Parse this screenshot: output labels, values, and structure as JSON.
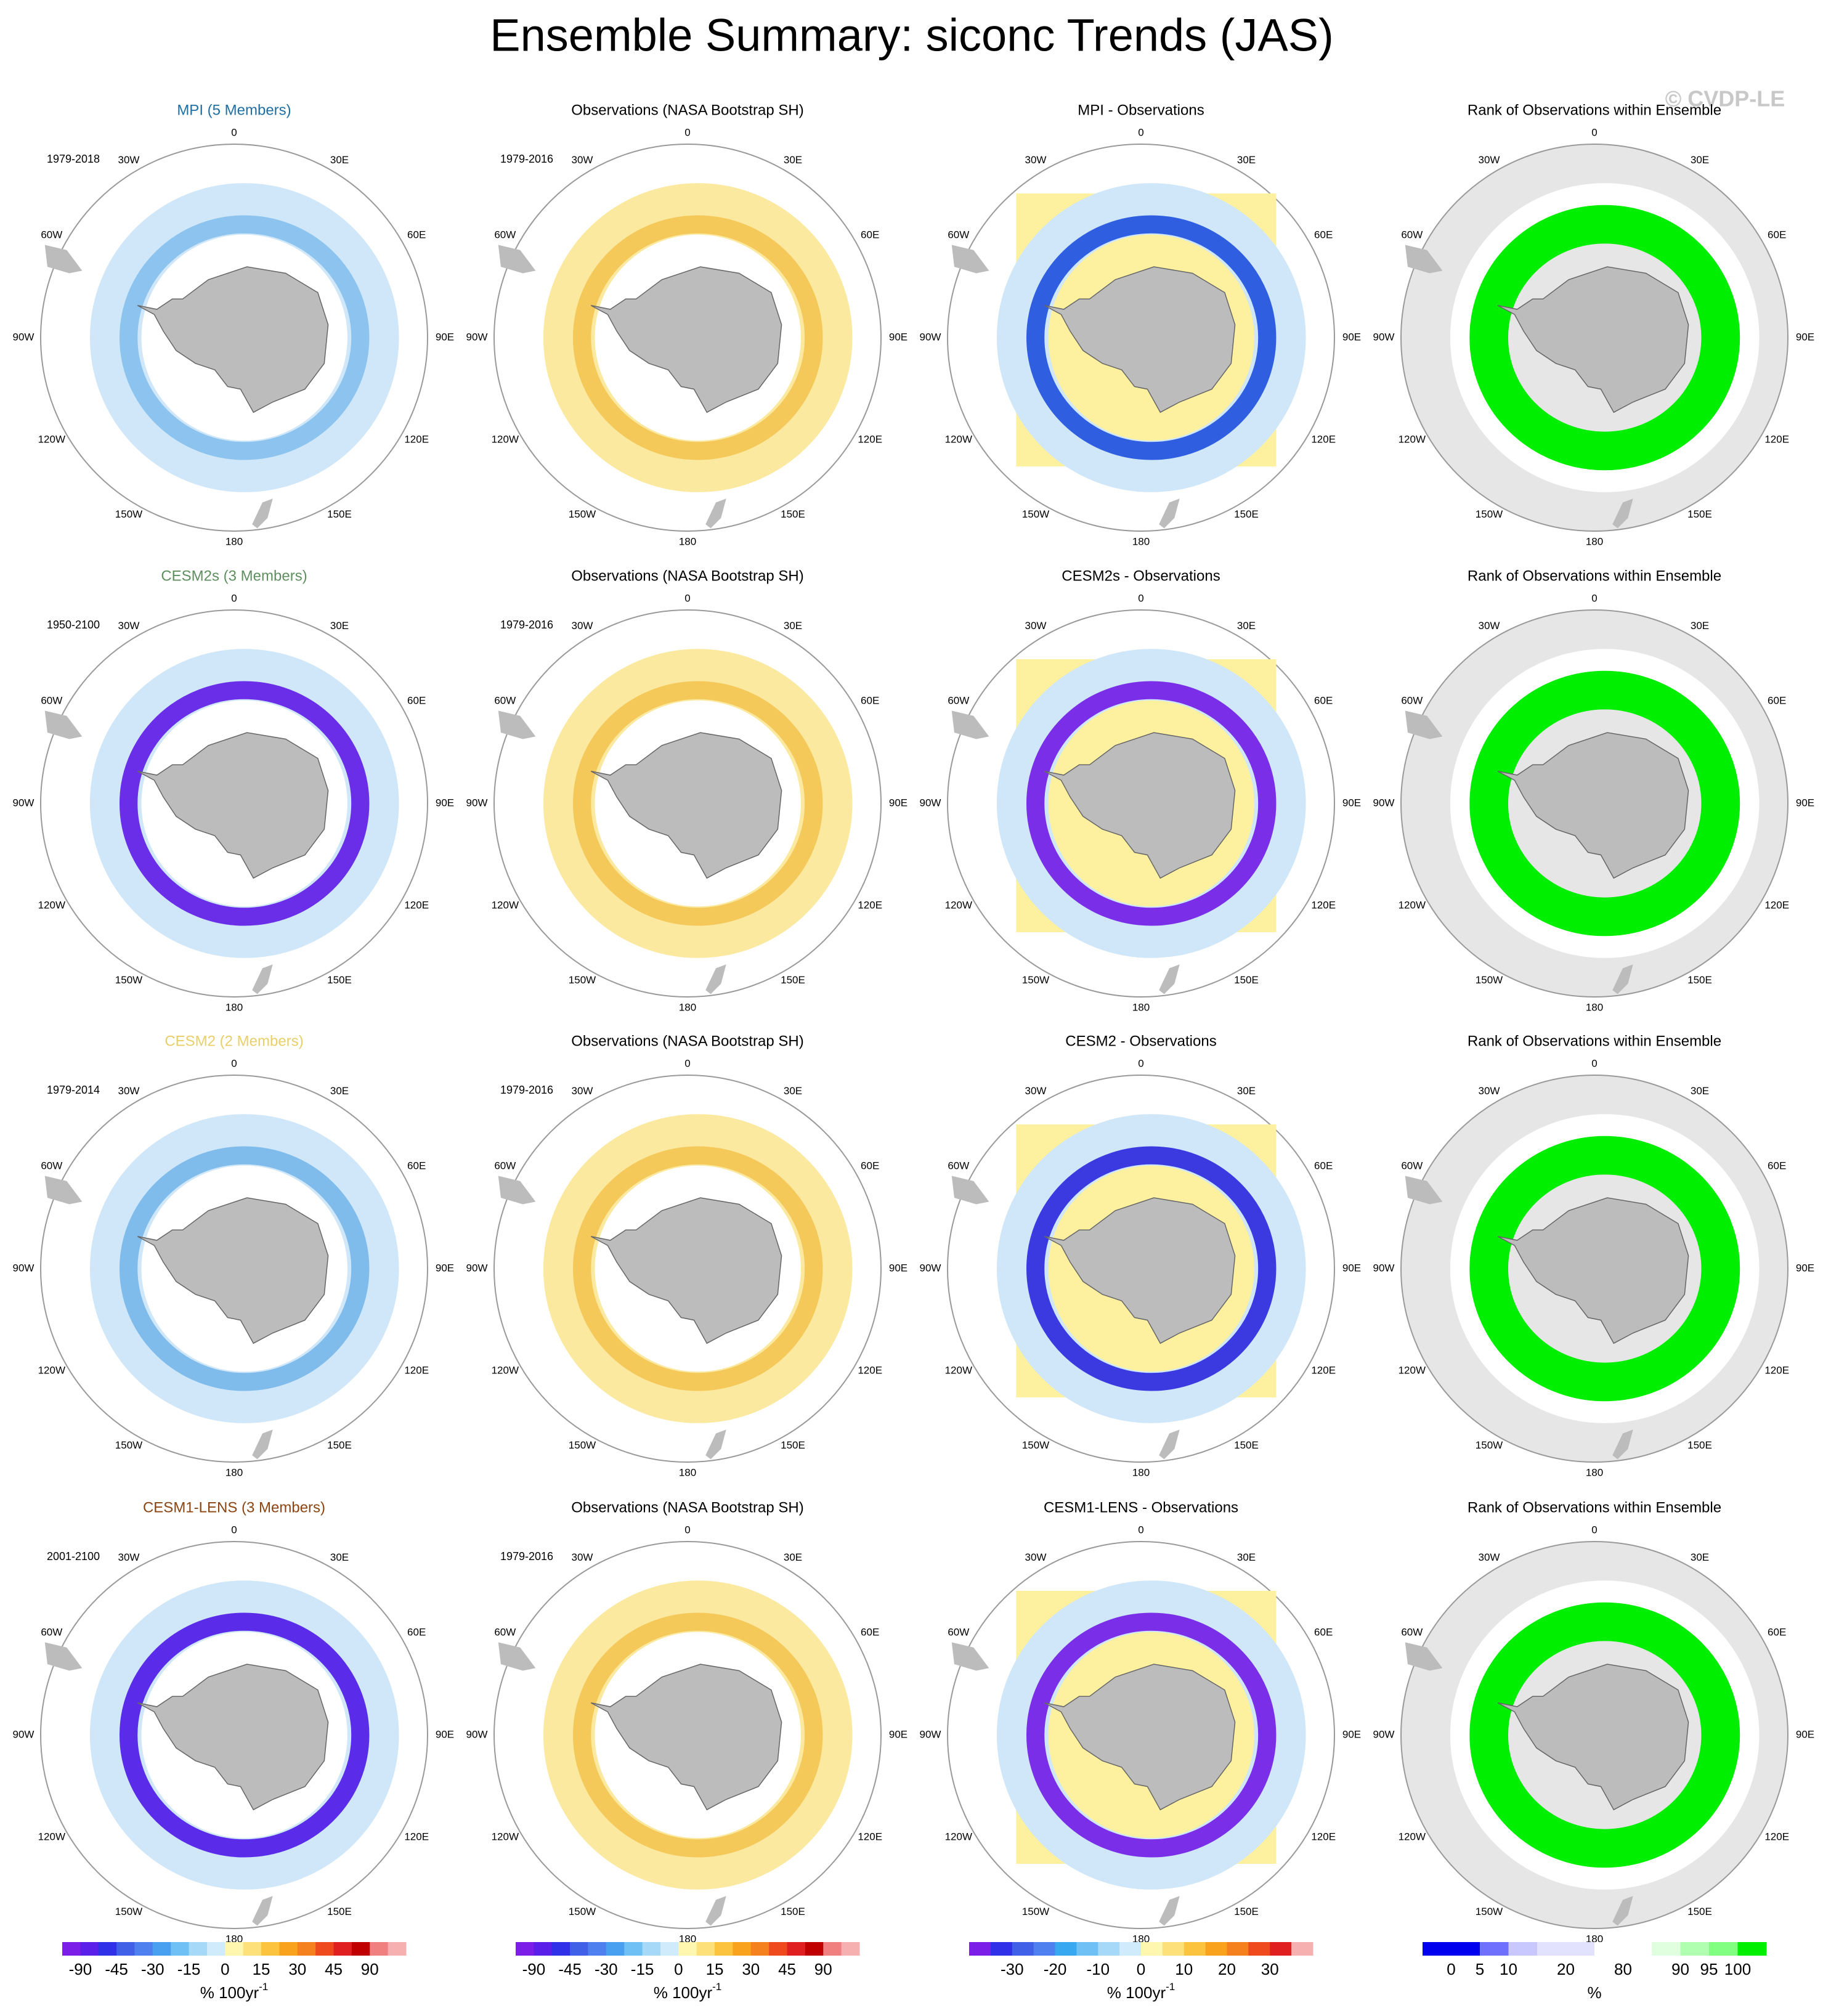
{
  "title": "Ensemble Summary: siconc Trends (JAS)",
  "watermark": "© CVDP-LE",
  "longitudes": [
    "0",
    "30E",
    "60E",
    "90E",
    "120E",
    "150E",
    "180",
    "150W",
    "120W",
    "90W",
    "60W",
    "30W"
  ],
  "rows": [
    {
      "panels": [
        {
          "title": "MPI (5 Members)",
          "period": "1979-2018"
        },
        {
          "title": "Observations (NASA Bootstrap SH)",
          "period": "1979-2016"
        },
        {
          "title": "MPI - Observations"
        },
        {
          "title": "Rank of Observations within Ensemble"
        }
      ]
    },
    {
      "panels": [
        {
          "title": "CESM2s (3 Members)",
          "period": "1950-2100"
        },
        {
          "title": "Observations (NASA Bootstrap SH)",
          "period": "1979-2016"
        },
        {
          "title": "CESM2s - Observations"
        },
        {
          "title": "Rank of Observations within Ensemble"
        }
      ]
    },
    {
      "panels": [
        {
          "title": "CESM2 (2 Members)",
          "period": "1979-2014"
        },
        {
          "title": "Observations (NASA Bootstrap SH)",
          "period": "1979-2016"
        },
        {
          "title": "CESM2 - Observations"
        },
        {
          "title": "Rank of Observations within Ensemble"
        }
      ]
    },
    {
      "panels": [
        {
          "title": "CESM1-LENS (3 Members)",
          "period": "2001-2100"
        },
        {
          "title": "Observations (NASA Bootstrap SH)",
          "period": "1979-2016"
        },
        {
          "title": "CESM1-LENS - Observations"
        },
        {
          "title": "Rank of Observations within Ensemble"
        }
      ]
    }
  ],
  "colorbars": [
    {
      "labels": [
        "-90",
        "-45",
        "-30",
        "-15",
        "0",
        "15",
        "30",
        "45",
        "90"
      ],
      "unit": "% 100yr",
      "unit_exponent": "-1"
    },
    {
      "labels": [
        "-90",
        "-45",
        "-30",
        "-15",
        "0",
        "15",
        "30",
        "45",
        "90"
      ],
      "unit": "% 100yr",
      "unit_exponent": "-1"
    },
    {
      "labels": [
        "-30",
        "-20",
        "-10",
        "0",
        "10",
        "20",
        "30"
      ],
      "unit": "% 100yr",
      "unit_exponent": "-1"
    },
    {
      "labels": [
        "0",
        "5",
        "10",
        "20",
        "80",
        "90",
        "95",
        "100"
      ],
      "unit": "%"
    }
  ]
}
